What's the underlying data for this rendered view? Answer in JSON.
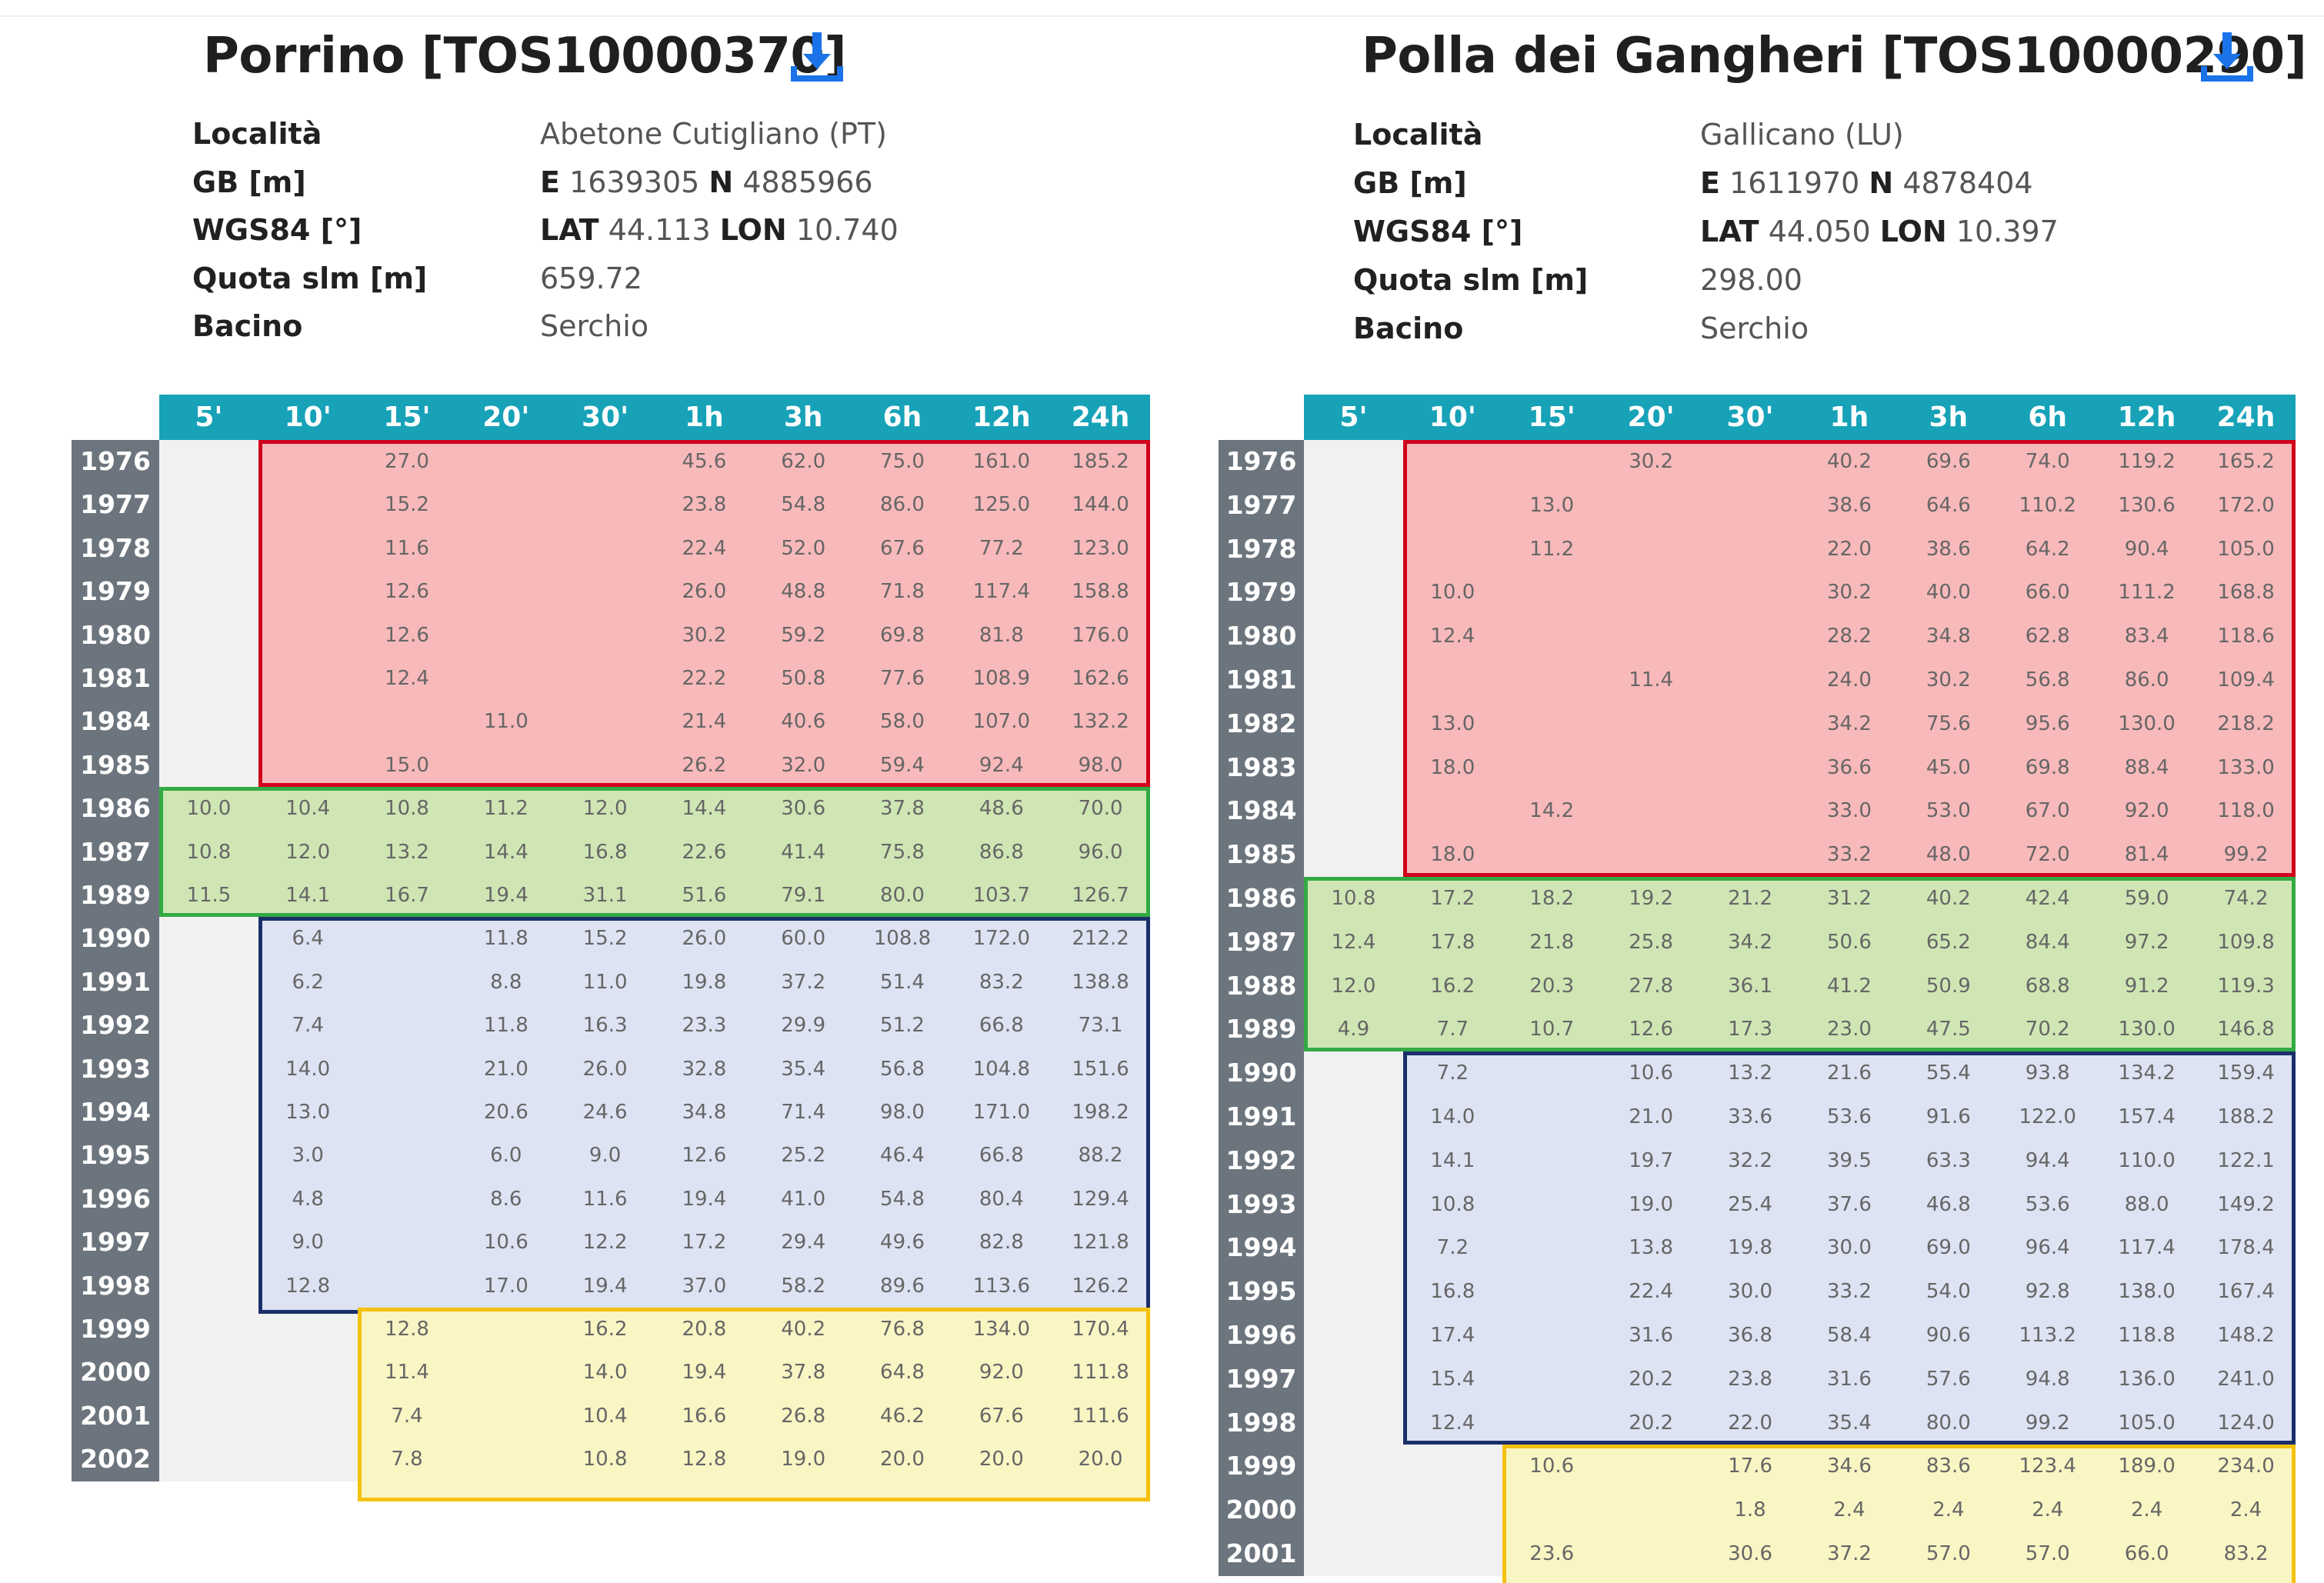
{
  "headers": [
    "5'",
    "10'",
    "15'",
    "20'",
    "30'",
    "1h",
    "3h",
    "6h",
    "12h",
    "24h"
  ],
  "labels": {
    "localita": "Località",
    "gb": "GB [m]",
    "wgs": "WGS84 [°]",
    "quota": "Quota slm [m]",
    "bacino": "Bacino",
    "e": "E",
    "n": "N",
    "lat": "LAT",
    "lon": "LON"
  },
  "left": {
    "title": "Porrino [TOS10000370]",
    "localita": "Abetone Cutigliano (PT)",
    "gb_e": "1639305",
    "gb_n": "4885966",
    "lat": "44.113",
    "lon": "10.740",
    "quota": "659.72",
    "bacino": "Serchio",
    "rows": [
      {
        "y": "1976",
        "v": [
          "",
          "",
          "27.0",
          "",
          "",
          "45.6",
          "62.0",
          "75.0",
          "161.0",
          "185.2"
        ]
      },
      {
        "y": "1977",
        "v": [
          "",
          "",
          "15.2",
          "",
          "",
          "23.8",
          "54.8",
          "86.0",
          "125.0",
          "144.0"
        ]
      },
      {
        "y": "1978",
        "v": [
          "",
          "",
          "11.6",
          "",
          "",
          "22.4",
          "52.0",
          "67.6",
          "77.2",
          "123.0"
        ]
      },
      {
        "y": "1979",
        "v": [
          "",
          "",
          "12.6",
          "",
          "",
          "26.0",
          "48.8",
          "71.8",
          "117.4",
          "158.8"
        ]
      },
      {
        "y": "1980",
        "v": [
          "",
          "",
          "12.6",
          "",
          "",
          "30.2",
          "59.2",
          "69.8",
          "81.8",
          "176.0"
        ]
      },
      {
        "y": "1981",
        "v": [
          "",
          "",
          "12.4",
          "",
          "",
          "22.2",
          "50.8",
          "77.6",
          "108.9",
          "162.6"
        ]
      },
      {
        "y": "1984",
        "v": [
          "",
          "",
          "",
          "11.0",
          "",
          "21.4",
          "40.6",
          "58.0",
          "107.0",
          "132.2"
        ]
      },
      {
        "y": "1985",
        "v": [
          "",
          "",
          "15.0",
          "",
          "",
          "26.2",
          "32.0",
          "59.4",
          "92.4",
          "98.0"
        ]
      },
      {
        "y": "1986",
        "v": [
          "10.0",
          "10.4",
          "10.8",
          "11.2",
          "12.0",
          "14.4",
          "30.6",
          "37.8",
          "48.6",
          "70.0"
        ]
      },
      {
        "y": "1987",
        "v": [
          "10.8",
          "12.0",
          "13.2",
          "14.4",
          "16.8",
          "22.6",
          "41.4",
          "75.8",
          "86.8",
          "96.0"
        ]
      },
      {
        "y": "1989",
        "v": [
          "11.5",
          "14.1",
          "16.7",
          "19.4",
          "31.1",
          "51.6",
          "79.1",
          "80.0",
          "103.7",
          "126.7"
        ]
      },
      {
        "y": "1990",
        "v": [
          "",
          "6.4",
          "",
          "11.8",
          "15.2",
          "26.0",
          "60.0",
          "108.8",
          "172.0",
          "212.2"
        ]
      },
      {
        "y": "1991",
        "v": [
          "",
          "6.2",
          "",
          "8.8",
          "11.0",
          "19.8",
          "37.2",
          "51.4",
          "83.2",
          "138.8"
        ]
      },
      {
        "y": "1992",
        "v": [
          "",
          "7.4",
          "",
          "11.8",
          "16.3",
          "23.3",
          "29.9",
          "51.2",
          "66.8",
          "73.1"
        ]
      },
      {
        "y": "1993",
        "v": [
          "",
          "14.0",
          "",
          "21.0",
          "26.0",
          "32.8",
          "35.4",
          "56.8",
          "104.8",
          "151.6"
        ]
      },
      {
        "y": "1994",
        "v": [
          "",
          "13.0",
          "",
          "20.6",
          "24.6",
          "34.8",
          "71.4",
          "98.0",
          "171.0",
          "198.2"
        ]
      },
      {
        "y": "1995",
        "v": [
          "",
          "3.0",
          "",
          "6.0",
          "9.0",
          "12.6",
          "25.2",
          "46.4",
          "66.8",
          "88.2"
        ]
      },
      {
        "y": "1996",
        "v": [
          "",
          "4.8",
          "",
          "8.6",
          "11.6",
          "19.4",
          "41.0",
          "54.8",
          "80.4",
          "129.4"
        ]
      },
      {
        "y": "1997",
        "v": [
          "",
          "9.0",
          "",
          "10.6",
          "12.2",
          "17.2",
          "29.4",
          "49.6",
          "82.8",
          "121.8"
        ]
      },
      {
        "y": "1998",
        "v": [
          "",
          "12.8",
          "",
          "17.0",
          "19.4",
          "37.0",
          "58.2",
          "89.6",
          "113.6",
          "126.2"
        ]
      },
      {
        "y": "1999",
        "v": [
          "",
          "",
          "12.8",
          "",
          "16.2",
          "20.8",
          "40.2",
          "76.8",
          "134.0",
          "170.4"
        ]
      },
      {
        "y": "2000",
        "v": [
          "",
          "",
          "11.4",
          "",
          "14.0",
          "19.4",
          "37.8",
          "64.8",
          "92.0",
          "111.8"
        ]
      },
      {
        "y": "2001",
        "v": [
          "",
          "",
          "7.4",
          "",
          "10.4",
          "16.6",
          "26.8",
          "46.2",
          "67.6",
          "111.6"
        ]
      },
      {
        "y": "2002",
        "v": [
          "",
          "",
          "7.8",
          "",
          "10.8",
          "12.8",
          "19.0",
          "20.0",
          "20.0",
          "20.0"
        ]
      }
    ]
  },
  "right": {
    "title": "Polla dei Gangheri [TOS10000290]",
    "localita": "Gallicano (LU)",
    "gb_e": "1611970",
    "gb_n": "4878404",
    "lat": "44.050",
    "lon": "10.397",
    "quota": "298.00",
    "bacino": "Serchio",
    "rows": [
      {
        "y": "1976",
        "v": [
          "",
          "",
          "",
          "30.2",
          "",
          "40.2",
          "69.6",
          "74.0",
          "119.2",
          "165.2"
        ]
      },
      {
        "y": "1977",
        "v": [
          "",
          "",
          "13.0",
          "",
          "",
          "38.6",
          "64.6",
          "110.2",
          "130.6",
          "172.0"
        ]
      },
      {
        "y": "1978",
        "v": [
          "",
          "",
          "11.2",
          "",
          "",
          "22.0",
          "38.6",
          "64.2",
          "90.4",
          "105.0"
        ]
      },
      {
        "y": "1979",
        "v": [
          "",
          "10.0",
          "",
          "",
          "",
          "30.2",
          "40.0",
          "66.0",
          "111.2",
          "168.8"
        ]
      },
      {
        "y": "1980",
        "v": [
          "",
          "12.4",
          "",
          "",
          "",
          "28.2",
          "34.8",
          "62.8",
          "83.4",
          "118.6"
        ]
      },
      {
        "y": "1981",
        "v": [
          "",
          "",
          "",
          "11.4",
          "",
          "24.0",
          "30.2",
          "56.8",
          "86.0",
          "109.4"
        ]
      },
      {
        "y": "1982",
        "v": [
          "",
          "13.0",
          "",
          "",
          "",
          "34.2",
          "75.6",
          "95.6",
          "130.0",
          "218.2"
        ]
      },
      {
        "y": "1983",
        "v": [
          "",
          "18.0",
          "",
          "",
          "",
          "36.6",
          "45.0",
          "69.8",
          "88.4",
          "133.0"
        ]
      },
      {
        "y": "1984",
        "v": [
          "",
          "",
          "14.2",
          "",
          "",
          "33.0",
          "53.0",
          "67.0",
          "92.0",
          "118.0"
        ]
      },
      {
        "y": "1985",
        "v": [
          "",
          "18.0",
          "",
          "",
          "",
          "33.2",
          "48.0",
          "72.0",
          "81.4",
          "99.2"
        ]
      },
      {
        "y": "1986",
        "v": [
          "10.8",
          "17.2",
          "18.2",
          "19.2",
          "21.2",
          "31.2",
          "40.2",
          "42.4",
          "59.0",
          "74.2"
        ]
      },
      {
        "y": "1987",
        "v": [
          "12.4",
          "17.8",
          "21.8",
          "25.8",
          "34.2",
          "50.6",
          "65.2",
          "84.4",
          "97.2",
          "109.8"
        ]
      },
      {
        "y": "1988",
        "v": [
          "12.0",
          "16.2",
          "20.3",
          "27.8",
          "36.1",
          "41.2",
          "50.9",
          "68.8",
          "91.2",
          "119.3"
        ]
      },
      {
        "y": "1989",
        "v": [
          "4.9",
          "7.7",
          "10.7",
          "12.6",
          "17.3",
          "23.0",
          "47.5",
          "70.2",
          "130.0",
          "146.8"
        ]
      },
      {
        "y": "1990",
        "v": [
          "",
          "7.2",
          "",
          "10.6",
          "13.2",
          "21.6",
          "55.4",
          "93.8",
          "134.2",
          "159.4"
        ]
      },
      {
        "y": "1991",
        "v": [
          "",
          "14.0",
          "",
          "21.0",
          "33.6",
          "53.6",
          "91.6",
          "122.0",
          "157.4",
          "188.2"
        ]
      },
      {
        "y": "1992",
        "v": [
          "",
          "14.1",
          "",
          "19.7",
          "32.2",
          "39.5",
          "63.3",
          "94.4",
          "110.0",
          "122.1"
        ]
      },
      {
        "y": "1993",
        "v": [
          "",
          "10.8",
          "",
          "19.0",
          "25.4",
          "37.6",
          "46.8",
          "53.6",
          "88.0",
          "149.2"
        ]
      },
      {
        "y": "1994",
        "v": [
          "",
          "7.2",
          "",
          "13.8",
          "19.8",
          "30.0",
          "69.0",
          "96.4",
          "117.4",
          "178.4"
        ]
      },
      {
        "y": "1995",
        "v": [
          "",
          "16.8",
          "",
          "22.4",
          "30.0",
          "33.2",
          "54.0",
          "92.8",
          "138.0",
          "167.4"
        ]
      },
      {
        "y": "1996",
        "v": [
          "",
          "17.4",
          "",
          "31.6",
          "36.8",
          "58.4",
          "90.6",
          "113.2",
          "118.8",
          "148.2"
        ]
      },
      {
        "y": "1997",
        "v": [
          "",
          "15.4",
          "",
          "20.2",
          "23.8",
          "31.6",
          "57.6",
          "94.8",
          "136.0",
          "241.0"
        ]
      },
      {
        "y": "1998",
        "v": [
          "",
          "12.4",
          "",
          "20.2",
          "22.0",
          "35.4",
          "80.0",
          "99.2",
          "105.0",
          "124.0"
        ]
      },
      {
        "y": "1999",
        "v": [
          "",
          "",
          "10.6",
          "",
          "17.6",
          "34.6",
          "83.6",
          "123.4",
          "189.0",
          "234.0"
        ]
      },
      {
        "y": "2000",
        "v": [
          "",
          "",
          "",
          "",
          "1.8",
          "2.4",
          "2.4",
          "2.4",
          "2.4",
          "2.4"
        ]
      },
      {
        "y": "2001",
        "v": [
          "",
          "",
          "23.6",
          "",
          "30.6",
          "37.2",
          "57.0",
          "57.0",
          "66.0",
          "83.2"
        ]
      }
    ]
  },
  "colors": {
    "header": "#17a2b8",
    "years": "#6c757d",
    "red": "#f8b9ba",
    "green": "#cfe6b4",
    "blue": "#dde3f3",
    "yellow": "#f9f6c4",
    "download": "#1a73e8"
  },
  "icons": {
    "download": "download-icon"
  }
}
